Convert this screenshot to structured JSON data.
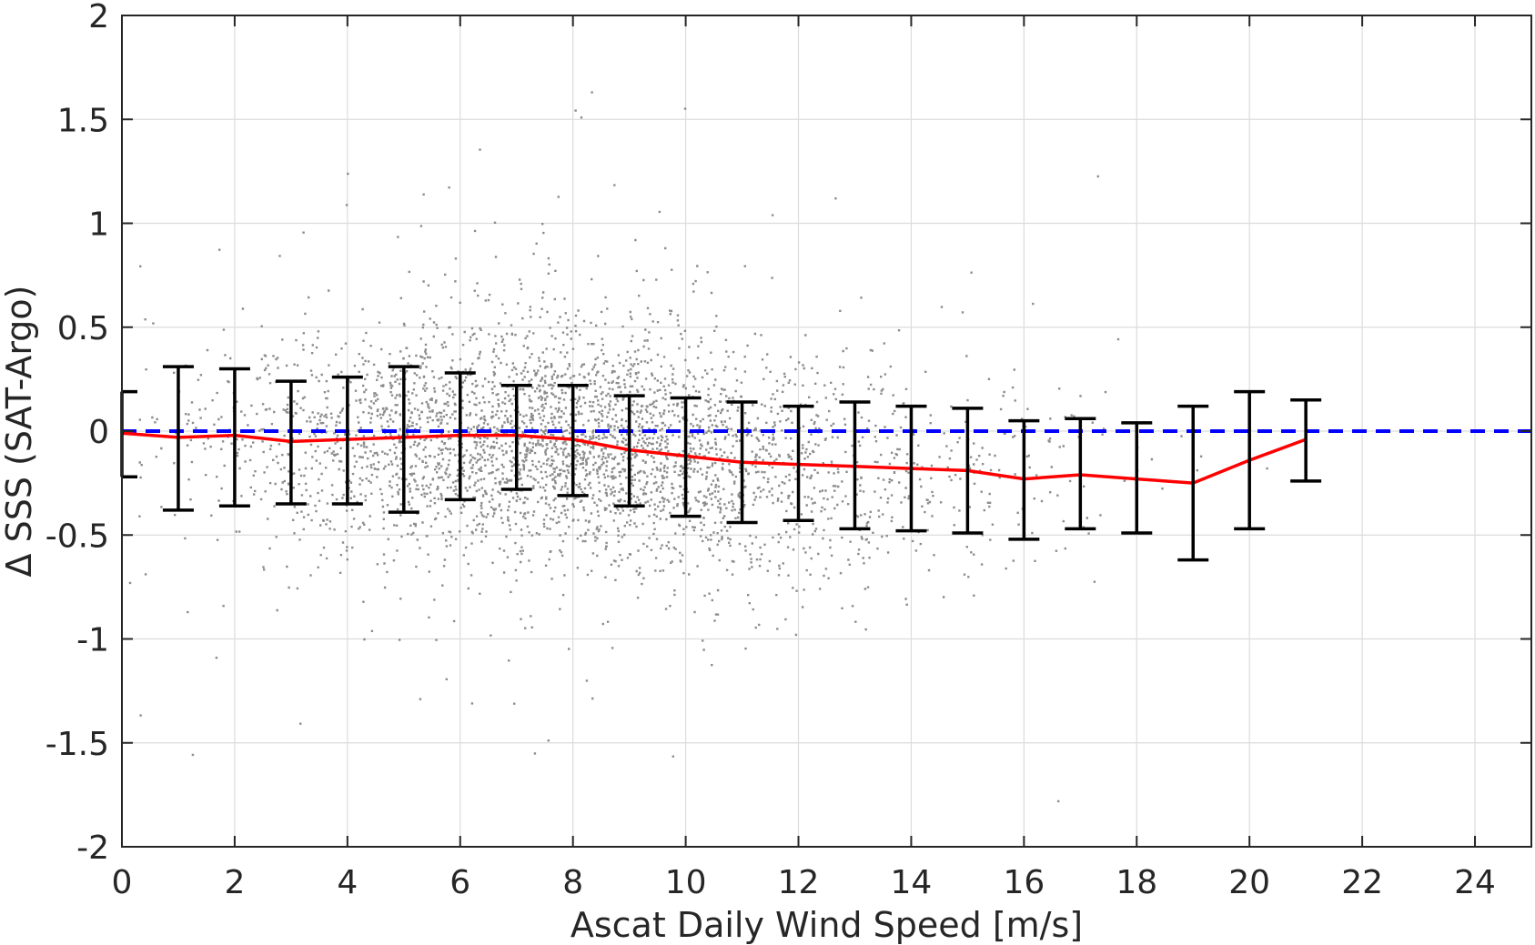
{
  "chart_data": {
    "type": "scatter",
    "title": "",
    "xlabel": "Ascat Daily Wind Speed [m/s]",
    "ylabel": "Δ SSS (SAT-Argo)",
    "xlim": [
      0,
      25
    ],
    "ylim": [
      -2,
      2
    ],
    "xticks": [
      0,
      2,
      4,
      6,
      8,
      10,
      12,
      14,
      16,
      18,
      20,
      22,
      24
    ],
    "yticks": [
      -2,
      -1.5,
      -1,
      -0.5,
      0,
      0.5,
      1,
      1.5,
      2
    ],
    "xtick_labels": [
      "0",
      "2",
      "4",
      "6",
      "8",
      "10",
      "12",
      "14",
      "16",
      "18",
      "20",
      "22",
      "24"
    ],
    "ytick_labels": [
      "-2",
      "-1.5",
      "-1",
      "-0.5",
      "0",
      "0.5",
      "1",
      "1.5",
      "2"
    ],
    "grid": true,
    "colors": {
      "scatter": "#808080",
      "mean_line": "#ff0000",
      "errorbar": "#000000",
      "zero_line": "#0000ff",
      "grid": "#dcdcdc",
      "axes": "#262626"
    },
    "series": [
      {
        "kind": "errorbar",
        "x": [
          0,
          1,
          2,
          3,
          4,
          5,
          6,
          7,
          8,
          9,
          10,
          11,
          12,
          13,
          14,
          15,
          16,
          17,
          18,
          19,
          20,
          21
        ],
        "mean": [
          -0.01,
          -0.03,
          -0.02,
          -0.05,
          -0.04,
          -0.03,
          -0.02,
          -0.02,
          -0.04,
          -0.09,
          -0.12,
          -0.15,
          -0.16,
          -0.17,
          -0.18,
          -0.19,
          -0.23,
          -0.21,
          -0.23,
          -0.25,
          -0.14,
          -0.04
        ],
        "upper": [
          0.19,
          0.31,
          0.3,
          0.24,
          0.26,
          0.31,
          0.28,
          0.22,
          0.22,
          0.17,
          0.16,
          0.14,
          0.12,
          0.14,
          0.12,
          0.11,
          0.05,
          0.06,
          0.04,
          0.12,
          0.19,
          0.15
        ],
        "lower": [
          -0.22,
          -0.38,
          -0.36,
          -0.35,
          -0.35,
          -0.39,
          -0.33,
          -0.28,
          -0.31,
          -0.36,
          -0.41,
          -0.44,
          -0.43,
          -0.47,
          -0.48,
          -0.49,
          -0.52,
          -0.47,
          -0.49,
          -0.62,
          -0.47,
          -0.24
        ]
      },
      {
        "kind": "reference_line",
        "y": 0
      },
      {
        "kind": "scatter_cloud",
        "approx_points": 60000,
        "x_range": [
          0,
          21.5
        ],
        "y_range": [
          -2,
          2
        ],
        "density_center_x": 7,
        "description_note": ""
      }
    ]
  }
}
